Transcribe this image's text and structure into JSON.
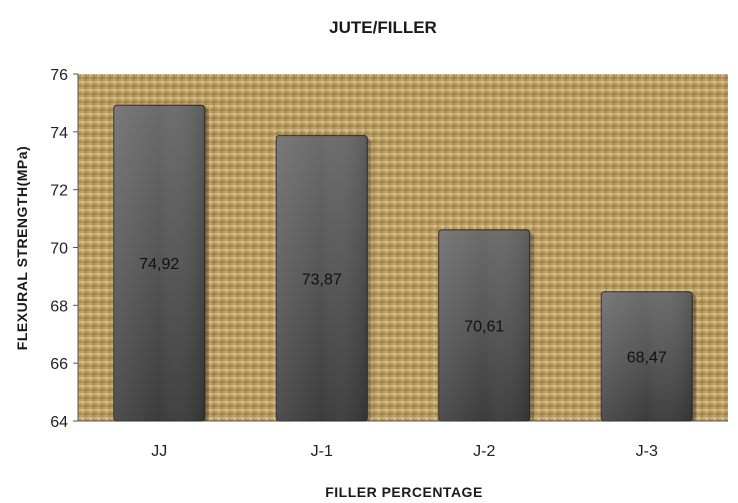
{
  "chart_data": {
    "type": "bar",
    "title": "JUTE/FILLER",
    "xlabel": "FILLER PERCENTAGE",
    "ylabel": "FLEXURAL STRENGTH(MPa)",
    "categories": [
      "JJ",
      "J-1",
      "J-2",
      "J-3"
    ],
    "values": [
      74.92,
      73.87,
      70.61,
      68.47
    ],
    "data_labels": [
      "74,92",
      "73,87",
      "70,61",
      "68,47"
    ],
    "ylim": [
      64,
      76
    ],
    "yticks": [
      64,
      66,
      68,
      70,
      72,
      74,
      76
    ],
    "grid": false,
    "legend": "none",
    "colors": {
      "bar_top": "#6b6b6b",
      "bar_mid": "#555555",
      "bar_bottom": "#3c3c3c",
      "bar_border": "#2a2a2a",
      "plot_background": "#b89a5e",
      "plot_texture": "burlap"
    }
  }
}
